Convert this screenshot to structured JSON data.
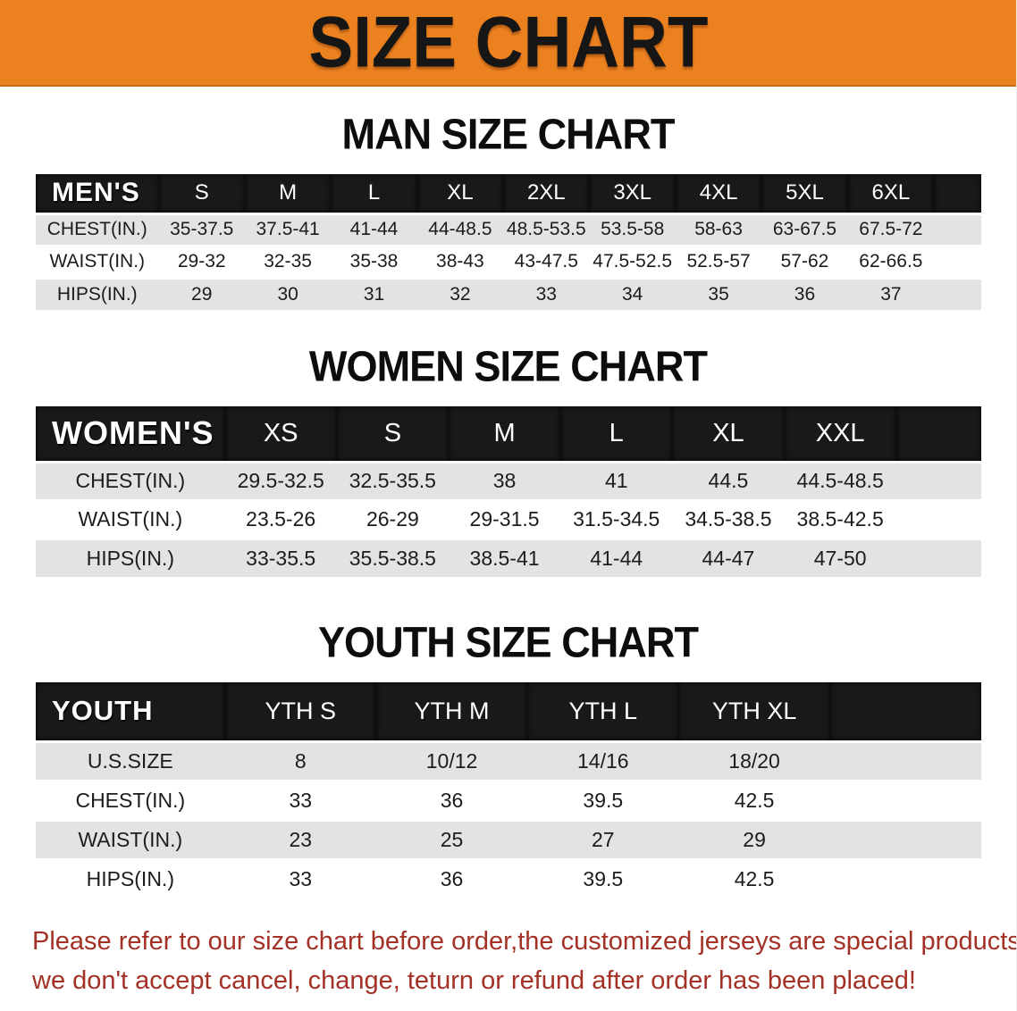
{
  "banner": {
    "title": "SIZE CHART"
  },
  "colors": {
    "banner_bg": "#EC8120",
    "header_row_bg": "#191919",
    "shaded_row_bg": "#E3E3E3",
    "footer_text": "#A33126"
  },
  "sections": [
    {
      "title": "MAN SIZE CHART",
      "header_label": "MEN'S",
      "columns": [
        "S",
        "M",
        "L",
        "XL",
        "2XL",
        "3XL",
        "4XL",
        "5XL",
        "6XL"
      ],
      "rows": [
        {
          "label": "CHEST(IN.)",
          "values": [
            "35-37.5",
            "37.5-41",
            "41-44",
            "44-48.5",
            "48.5-53.5",
            "53.5-58",
            "58-63",
            "63-67.5",
            "67.5-72"
          ]
        },
        {
          "label": "WAIST(IN.)",
          "values": [
            "29-32",
            "32-35",
            "35-38",
            "38-43",
            "43-47.5",
            "47.5-52.5",
            "52.5-57",
            "57-62",
            "62-66.5"
          ]
        },
        {
          "label": "HIPS(IN.)",
          "values": [
            "29",
            "30",
            "31",
            "32",
            "33",
            "34",
            "35",
            "36",
            "37"
          ]
        }
      ]
    },
    {
      "title": "WOMEN SIZE CHART",
      "header_label": "WOMEN'S",
      "columns": [
        "XS",
        "S",
        "M",
        "L",
        "XL",
        "XXL"
      ],
      "rows": [
        {
          "label": "CHEST(IN.)",
          "values": [
            "29.5-32.5",
            "32.5-35.5",
            "38",
            "41",
            "44.5",
            "44.5-48.5"
          ]
        },
        {
          "label": "WAIST(IN.)",
          "values": [
            "23.5-26",
            "26-29",
            "29-31.5",
            "31.5-34.5",
            "34.5-38.5",
            "38.5-42.5"
          ]
        },
        {
          "label": "HIPS(IN.)",
          "values": [
            "33-35.5",
            "35.5-38.5",
            "38.5-41",
            "41-44",
            "44-47",
            "47-50"
          ]
        }
      ]
    },
    {
      "title": "YOUTH SIZE CHART",
      "header_label": "YOUTH",
      "columns": [
        "YTH S",
        "YTH M",
        "YTH L",
        "YTH XL"
      ],
      "rows": [
        {
          "label": "U.S.SIZE",
          "values": [
            "8",
            "10/12",
            "14/16",
            "18/20"
          ]
        },
        {
          "label": "CHEST(IN.)",
          "values": [
            "33",
            "36",
            "39.5",
            "42.5"
          ]
        },
        {
          "label": "WAIST(IN.)",
          "values": [
            "23",
            "25",
            "27",
            "29"
          ]
        },
        {
          "label": "HIPS(IN.)",
          "values": [
            "33",
            "36",
            "39.5",
            "42.5"
          ]
        }
      ]
    }
  ],
  "footer": {
    "line1": "Please refer to our size chart before order,the customized jerseys are special products,",
    "line2": "we don't accept cancel, change, teturn or refund after order has been placed!"
  }
}
